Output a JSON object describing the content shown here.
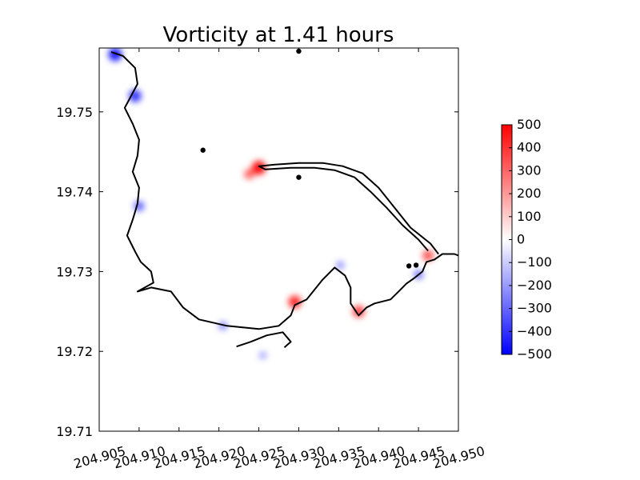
{
  "chart_data": {
    "type": "heatmap",
    "title": "Vorticity at 1.41 hours",
    "xlabel": "",
    "ylabel": "",
    "xlim": [
      204.905,
      204.95
    ],
    "ylim": [
      19.71,
      19.758
    ],
    "xticks": [
      "204.905",
      "204.910",
      "204.915",
      "204.920",
      "204.925",
      "204.930",
      "204.935",
      "204.940",
      "204.945",
      "204.950"
    ],
    "xtick_values": [
      204.905,
      204.91,
      204.915,
      204.92,
      204.925,
      204.93,
      204.935,
      204.94,
      204.945,
      204.95
    ],
    "yticks": [
      "19.71",
      "19.72",
      "19.73",
      "19.74",
      "19.75"
    ],
    "ytick_values": [
      19.71,
      19.72,
      19.73,
      19.74,
      19.75
    ],
    "colorbar": {
      "min": -500,
      "max": 500,
      "ticks": [
        "500",
        "400",
        "300",
        "200",
        "100",
        "0",
        "−100",
        "−200",
        "−300",
        "−400",
        "−500"
      ],
      "tick_values": [
        500,
        400,
        300,
        200,
        100,
        0,
        -100,
        -200,
        -300,
        -400,
        -500
      ],
      "colormap": "bwr",
      "colors": {
        "low": "#0000ff",
        "mid": "#ffffff",
        "high": "#ff0000"
      }
    },
    "coastline": {
      "color": "#000000",
      "outer": [
        [
          204.9065,
          19.7575
        ],
        [
          204.908,
          19.757
        ],
        [
          204.9095,
          19.7555
        ],
        [
          204.9098,
          19.7535
        ],
        [
          204.909,
          19.752
        ],
        [
          204.9082,
          19.7505
        ],
        [
          204.9092,
          19.7485
        ],
        [
          204.91,
          19.7465
        ],
        [
          204.9098,
          19.7445
        ],
        [
          204.9092,
          19.7425
        ],
        [
          204.91,
          19.7405
        ],
        [
          204.9098,
          19.7385
        ],
        [
          204.9092,
          19.7365
        ],
        [
          204.9085,
          19.7345
        ],
        [
          204.9095,
          19.7325
        ],
        [
          204.9102,
          19.7312
        ],
        [
          204.9115,
          19.73
        ],
        [
          204.9118,
          19.7286
        ],
        [
          204.9098,
          19.7275
        ],
        [
          204.9115,
          19.728
        ],
        [
          204.914,
          19.7275
        ],
        [
          204.9155,
          19.7255
        ],
        [
          204.9175,
          19.724
        ],
        [
          204.921,
          19.7232
        ],
        [
          204.925,
          19.7228
        ],
        [
          204.9275,
          19.7232
        ],
        [
          204.929,
          19.7245
        ],
        [
          204.9295,
          19.7258
        ],
        [
          204.931,
          19.7265
        ],
        [
          204.933,
          19.729
        ],
        [
          204.9345,
          19.7305
        ],
        [
          204.9358,
          19.7295
        ],
        [
          204.9365,
          19.728
        ],
        [
          204.9365,
          19.726
        ],
        [
          204.9375,
          19.7245
        ],
        [
          204.9385,
          19.7255
        ],
        [
          204.9395,
          19.726
        ],
        [
          204.9415,
          19.7265
        ],
        [
          204.9425,
          19.7275
        ],
        [
          204.9435,
          19.7285
        ],
        [
          204.9445,
          19.7292
        ],
        [
          204.9455,
          19.73
        ],
        [
          204.946,
          19.7312
        ],
        [
          204.947,
          19.7315
        ],
        [
          204.948,
          19.7322
        ],
        [
          204.9495,
          19.7322
        ],
        [
          204.95,
          19.732
        ]
      ],
      "peninsula": [
        [
          204.9475,
          19.7322
        ],
        [
          204.9465,
          19.7335
        ],
        [
          204.944,
          19.7355
        ],
        [
          204.942,
          19.738
        ],
        [
          204.94,
          19.7405
        ],
        [
          204.938,
          19.7423
        ],
        [
          204.9355,
          19.7432
        ],
        [
          204.933,
          19.7436
        ],
        [
          204.93,
          19.7436
        ],
        [
          204.927,
          19.7434
        ],
        [
          204.925,
          19.7432
        ],
        [
          204.9258,
          19.7428
        ],
        [
          204.929,
          19.743
        ],
        [
          204.932,
          19.743
        ],
        [
          204.9345,
          19.7427
        ],
        [
          204.937,
          19.7418
        ],
        [
          204.939,
          19.74
        ],
        [
          204.941,
          19.738
        ],
        [
          204.943,
          19.7358
        ],
        [
          204.945,
          19.734
        ],
        [
          204.9462,
          19.7326
        ]
      ],
      "south_spur": [
        [
          204.9222,
          19.7206
        ],
        [
          204.924,
          19.7212
        ],
        [
          204.926,
          19.722
        ],
        [
          204.928,
          19.7224
        ],
        [
          204.929,
          19.7212
        ],
        [
          204.9282,
          19.7205
        ]
      ]
    },
    "markers": [
      {
        "x": 204.93,
        "y": 19.7576
      },
      {
        "x": 204.918,
        "y": 19.7452
      },
      {
        "x": 204.93,
        "y": 19.7418
      },
      {
        "x": 204.9438,
        "y": 19.7307
      },
      {
        "x": 204.9447,
        "y": 19.7308
      }
    ],
    "vorticity_features": [
      {
        "x": 204.907,
        "y": 19.7572,
        "value": -450
      },
      {
        "x": 204.9095,
        "y": 19.752,
        "value": -380
      },
      {
        "x": 204.91,
        "y": 19.7382,
        "value": -250
      },
      {
        "x": 204.925,
        "y": 19.743,
        "value": 480
      },
      {
        "x": 204.9238,
        "y": 19.7422,
        "value": 250
      },
      {
        "x": 204.9295,
        "y": 19.7262,
        "value": 400
      },
      {
        "x": 204.9375,
        "y": 19.725,
        "value": 350
      },
      {
        "x": 204.9462,
        "y": 19.732,
        "value": 300
      },
      {
        "x": 204.945,
        "y": 19.7296,
        "value": -200
      },
      {
        "x": 204.9205,
        "y": 19.7232,
        "value": -150
      },
      {
        "x": 204.9352,
        "y": 19.7308,
        "value": -120
      },
      {
        "x": 204.9255,
        "y": 19.7195,
        "value": -80
      }
    ]
  }
}
